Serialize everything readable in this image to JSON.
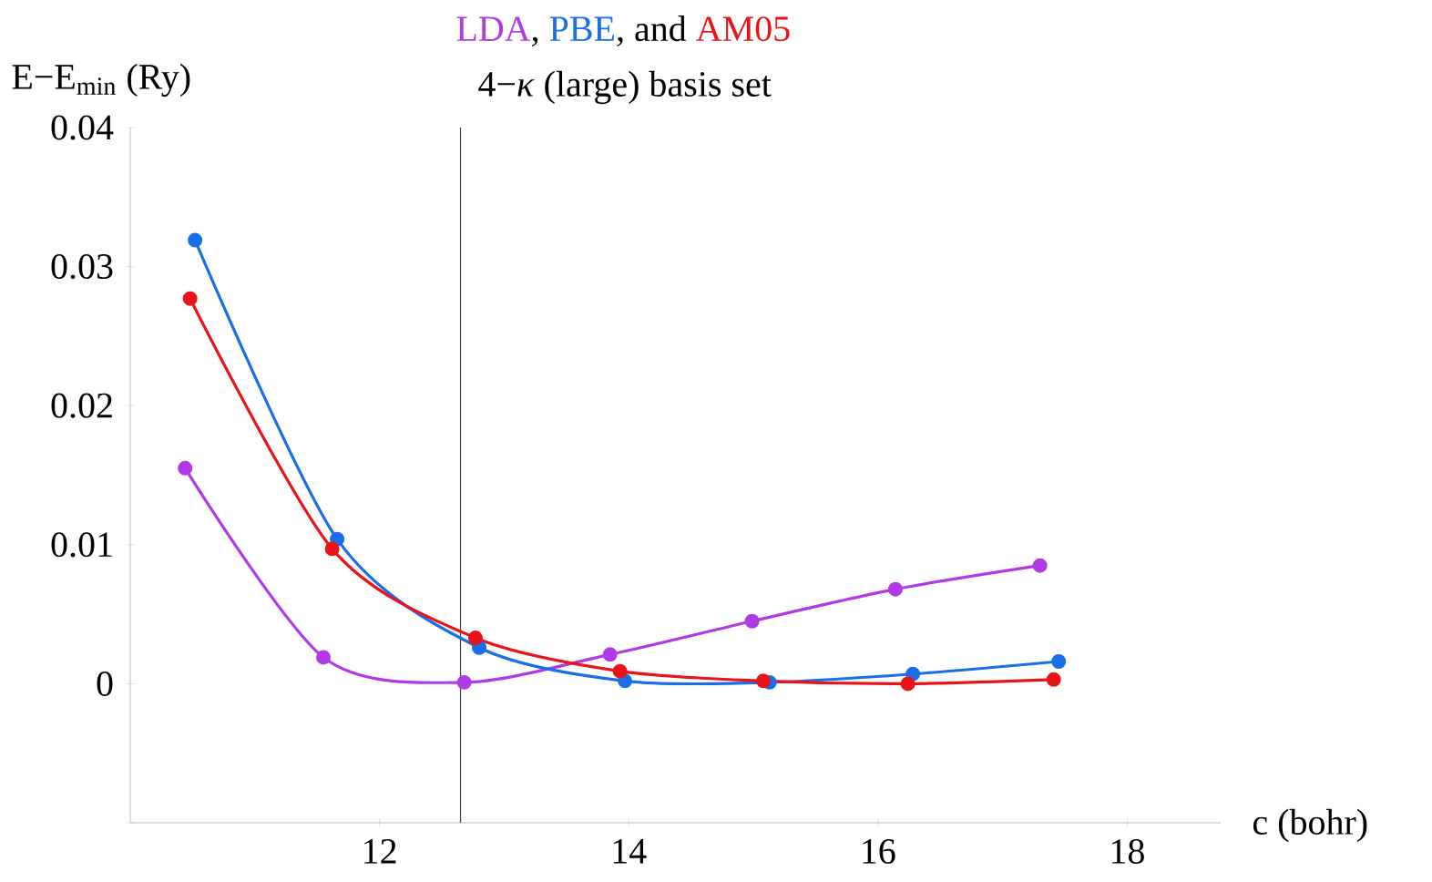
{
  "chart_data": {
    "type": "line",
    "title": "4−*κ* (large) basis set",
    "annotations": [
      ", ",
      ", and "
    ],
    "xlabel": "c (bohr)",
    "ylabel": "E−E$_{min}$ (Ry)",
    "xlim": [
      10,
      18.75
    ],
    "ylim": [
      -0.01,
      0.04
    ],
    "xticks": [
      12,
      14,
      16,
      18
    ],
    "yticks": [
      {
        "value": -0.01,
        "label": null
      },
      0,
      0.01,
      0.02,
      0.03,
      0.04
    ],
    "marker": "circle",
    "line_style": "solid",
    "grid": false,
    "ref_lines": [
      {
        "axis": "x",
        "value": 12.65,
        "color": "#404040"
      }
    ],
    "series": [
      {
        "name": "LDA",
        "color": "#b03ae8",
        "x": [
          10.44,
          11.55,
          12.68,
          13.85,
          14.99,
          16.14,
          17.3
        ],
        "values": [
          0.0155,
          0.0019,
          0.0001,
          0.0021,
          0.0045,
          0.0068,
          0.0085
        ]
      },
      {
        "name": "PBE",
        "color": "#1a6ee6",
        "x": [
          10.52,
          11.66,
          12.8,
          13.97,
          15.13,
          16.28,
          17.45
        ],
        "values": [
          0.0319,
          0.0104,
          0.0026,
          0.0002,
          0.0001,
          0.0007,
          0.0016
        ]
      },
      {
        "name": "AM05",
        "color": "#e8141a",
        "x": [
          10.48,
          11.62,
          12.77,
          13.93,
          15.08,
          16.24,
          17.41
        ],
        "values": [
          0.0277,
          0.0097,
          0.0033,
          0.0009,
          0.0002,
          0.0,
          0.0003
        ]
      }
    ]
  }
}
